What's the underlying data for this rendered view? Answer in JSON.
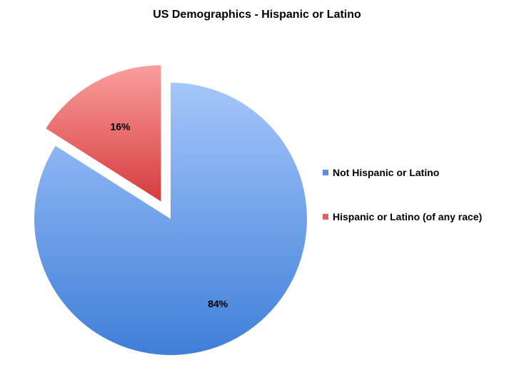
{
  "chart_data": {
    "type": "pie",
    "title": "US Demographics - Hispanic or Latino",
    "slices": [
      {
        "name": "Not Hispanic or Latino",
        "value": 84,
        "label": "84%",
        "color_top": "#a4c6fb",
        "color_bottom": "#3f7fd8",
        "exploded": false
      },
      {
        "name": "Hispanic or Latino (of any race)",
        "value": 16,
        "label": "16%",
        "color_top": "#fa9e9e",
        "color_bottom": "#d63c3c",
        "exploded": true
      }
    ],
    "legend_position": "right",
    "legend_colors": [
      "#5b8fdc",
      "#e06060"
    ]
  }
}
